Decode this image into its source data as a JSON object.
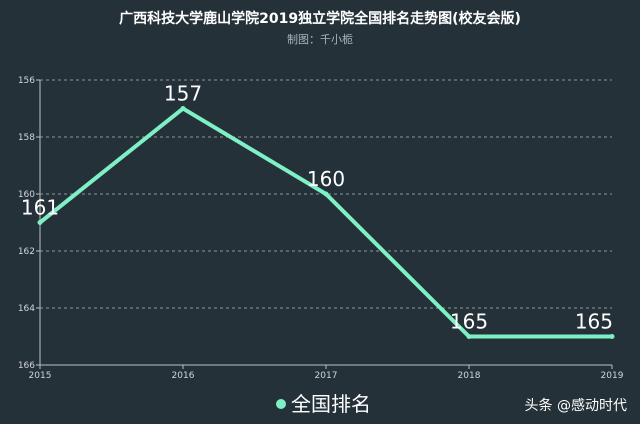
{
  "title": "广西科技大学鹿山学院2019独立学院全国排名走势图(校友会版)",
  "subtitle": "制图：千小栀",
  "watermark": "头条 @感动时代",
  "colors": {
    "background": "#253138",
    "line": "#7ff0c6",
    "grid": "#8a969c",
    "axis": "#b8c2c7"
  },
  "chart_data": {
    "type": "line",
    "title": "广西科技大学鹿山学院2019独立学院全国排名走势图(校友会版)",
    "subtitle": "制图：千小栀",
    "categories": [
      "2015",
      "2016",
      "2017",
      "2018",
      "2019"
    ],
    "series": [
      {
        "name": "全国排名",
        "values": [
          161,
          157,
          160,
          165,
          165
        ]
      }
    ],
    "y_ticks": [
      156,
      158,
      160,
      162,
      164,
      166
    ],
    "ylim": [
      156,
      166
    ],
    "y_inverted": true,
    "grid": "horizontal dashed",
    "legend": "bottom-center",
    "data_labels": true
  }
}
